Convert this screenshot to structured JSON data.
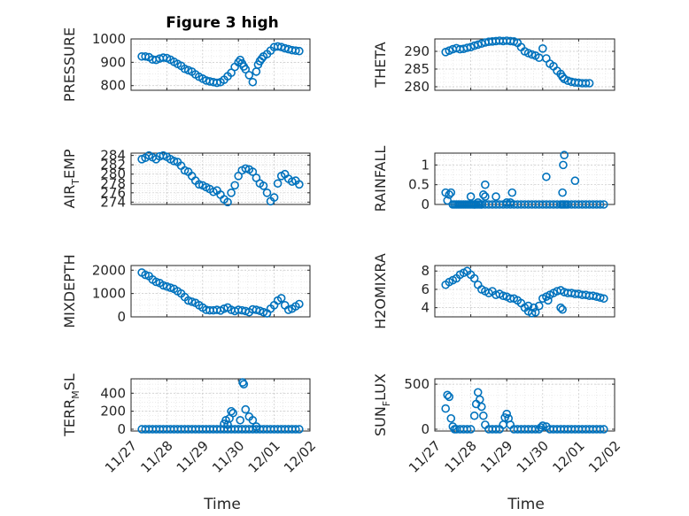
{
  "figure_title": "Figure 3 high",
  "x_axis_label": "Time",
  "x_tick_labels": [
    "11/27",
    "11/28",
    "11/29",
    "11/30",
    "12/01",
    "12/02"
  ],
  "marker_color": "#0072BD",
  "chart_data": [
    {
      "type": "scatter",
      "ylabel": "PRESSURE",
      "ylim": [
        780,
        1000
      ],
      "yticks": [
        800,
        900,
        1000
      ],
      "x": [
        0.3,
        0.4,
        0.5,
        0.6,
        0.7,
        0.8,
        0.9,
        1.0,
        1.1,
        1.2,
        1.3,
        1.4,
        1.5,
        1.6,
        1.7,
        1.8,
        1.9,
        2.0,
        2.1,
        2.2,
        2.3,
        2.4,
        2.5,
        2.6,
        2.7,
        2.8,
        2.9,
        3.0,
        3.05,
        3.1,
        3.15,
        3.2,
        3.3,
        3.4,
        3.5,
        3.55,
        3.6,
        3.65,
        3.7,
        3.8,
        3.9,
        4.0,
        4.1,
        4.2,
        4.3,
        4.4,
        4.5,
        4.6,
        4.7
      ],
      "y": [
        925,
        925,
        922,
        912,
        910,
        916,
        920,
        918,
        911,
        902,
        893,
        885,
        872,
        866,
        860,
        848,
        838,
        830,
        822,
        818,
        815,
        812,
        815,
        825,
        840,
        855,
        880,
        900,
        910,
        895,
        882,
        870,
        845,
        815,
        860,
        890,
        905,
        915,
        925,
        935,
        950,
        965,
        968,
        965,
        960,
        956,
        952,
        950,
        948
      ],
      "grid": true
    },
    {
      "type": "scatter",
      "ylabel": "THETA",
      "ylim": [
        279,
        293.5
      ],
      "yticks": [
        280,
        285,
        290
      ],
      "x": [
        0.3,
        0.4,
        0.5,
        0.6,
        0.7,
        0.8,
        0.9,
        1.0,
        1.1,
        1.2,
        1.3,
        1.4,
        1.5,
        1.6,
        1.7,
        1.8,
        1.9,
        2.0,
        2.1,
        2.2,
        2.3,
        2.4,
        2.5,
        2.6,
        2.7,
        2.8,
        2.9,
        3.0,
        3.1,
        3.2,
        3.3,
        3.4,
        3.5,
        3.55,
        3.6,
        3.7,
        3.8,
        3.9,
        4.0,
        4.1,
        4.2,
        4.3
      ],
      "y": [
        289.8,
        290.2,
        290.6,
        290.9,
        290.6,
        290.7,
        291.0,
        291.2,
        291.6,
        291.9,
        292.2,
        292.5,
        292.7,
        292.8,
        292.9,
        293.0,
        292.9,
        293.0,
        292.9,
        292.8,
        292.4,
        291.2,
        290.0,
        289.5,
        289.1,
        288.8,
        288.2,
        290.8,
        288.0,
        286.5,
        285.8,
        284.5,
        283.6,
        282.8,
        282.2,
        281.7,
        281.4,
        281.2,
        281.1,
        281.0,
        281.0,
        281.0
      ],
      "grid": true
    },
    {
      "type": "scatter",
      "ylabel": "AIR_TEMP",
      "ylabel_sub": "T",
      "ylim": [
        273.5,
        284.5
      ],
      "yticks": [
        274,
        276,
        278,
        280,
        282,
        284
      ],
      "x": [
        0.3,
        0.4,
        0.5,
        0.6,
        0.7,
        0.8,
        0.9,
        1.0,
        1.1,
        1.2,
        1.3,
        1.4,
        1.5,
        1.6,
        1.7,
        1.8,
        1.9,
        2.0,
        2.1,
        2.2,
        2.3,
        2.4,
        2.5,
        2.6,
        2.7,
        2.8,
        2.9,
        3.0,
        3.1,
        3.2,
        3.3,
        3.4,
        3.5,
        3.6,
        3.7,
        3.8,
        3.9,
        4.0,
        4.1,
        4.2,
        4.3,
        4.4,
        4.5,
        4.6,
        4.7
      ],
      "y": [
        283.2,
        283.5,
        284.0,
        283.6,
        283.2,
        283.8,
        284.0,
        283.7,
        283.2,
        282.8,
        282.6,
        281.8,
        280.8,
        280.5,
        279.6,
        278.6,
        277.8,
        277.6,
        277.2,
        276.8,
        276.2,
        276.5,
        275.6,
        274.6,
        274.0,
        276.0,
        277.6,
        279.6,
        280.8,
        281.2,
        281.0,
        280.5,
        279.2,
        278.0,
        277.5,
        276.0,
        274.2,
        275.0,
        278.0,
        279.6,
        280.0,
        279.0,
        278.4,
        278.6,
        277.8
      ],
      "grid": true
    },
    {
      "type": "scatter",
      "ylabel": "RAINFALL",
      "ylim": [
        0,
        1.3
      ],
      "yticks": [
        0,
        0.5,
        1
      ],
      "x": [
        0.3,
        0.35,
        0.4,
        0.45,
        0.5,
        0.55,
        0.6,
        0.65,
        0.7,
        0.75,
        0.8,
        0.85,
        0.9,
        0.95,
        1.0,
        1.05,
        1.1,
        1.15,
        1.2,
        1.3,
        1.4,
        1.5,
        1.6,
        1.7,
        1.8,
        1.9,
        2.0,
        2.1,
        2.2,
        2.3,
        2.4,
        2.5,
        2.6,
        2.7,
        2.8,
        2.9,
        3.0,
        3.1,
        3.2,
        3.3,
        3.4,
        3.5,
        3.55,
        3.6,
        3.65,
        3.7,
        3.8,
        3.9,
        4.0,
        4.1,
        4.2,
        4.3,
        4.4,
        4.5,
        4.6,
        4.7,
        1.0,
        1.1,
        1.2,
        1.25,
        1.3,
        1.35,
        1.4,
        1.7,
        2.0,
        2.1,
        2.15,
        3.1,
        3.55,
        3.57,
        3.6,
        1.4,
        3.9
      ],
      "y": [
        0.3,
        0.1,
        0.25,
        0.3,
        0.0,
        0.0,
        0.0,
        0.0,
        0.0,
        0.0,
        0.0,
        0.0,
        0.0,
        0.0,
        0.0,
        0.0,
        0.0,
        0.0,
        0.0,
        0.0,
        0.0,
        0.0,
        0.0,
        0.0,
        0.0,
        0.0,
        0.0,
        0.0,
        0.0,
        0.0,
        0.0,
        0.0,
        0.0,
        0.0,
        0.0,
        0.0,
        0.0,
        0.0,
        0.0,
        0.0,
        0.0,
        0.0,
        0.0,
        0.0,
        0.0,
        0.0,
        0.0,
        0.0,
        0.0,
        0.0,
        0.0,
        0.0,
        0.0,
        0.0,
        0.0,
        0.0,
        0.2,
        0.0,
        0.05,
        0.0,
        0.0,
        0.25,
        0.2,
        0.2,
        0.05,
        0.05,
        0.3,
        0.7,
        0.3,
        1.0,
        1.25,
        0.5,
        0.6
      ],
      "grid": true
    },
    {
      "type": "scatter",
      "ylabel": "MIXDEPTH",
      "ylim": [
        0,
        2200
      ],
      "yticks": [
        0,
        1000,
        2000
      ],
      "x": [
        0.3,
        0.4,
        0.5,
        0.6,
        0.7,
        0.8,
        0.9,
        1.0,
        1.1,
        1.2,
        1.3,
        1.4,
        1.5,
        1.6,
        1.7,
        1.8,
        1.9,
        2.0,
        2.1,
        2.2,
        2.3,
        2.4,
        2.5,
        2.6,
        2.7,
        2.8,
        2.9,
        3.0,
        3.1,
        3.2,
        3.3,
        3.4,
        3.5,
        3.6,
        3.7,
        3.8,
        3.9,
        4.0,
        4.1,
        4.2,
        4.3,
        4.4,
        4.5,
        4.6,
        4.7
      ],
      "y": [
        1900,
        1800,
        1750,
        1600,
        1500,
        1450,
        1350,
        1300,
        1250,
        1200,
        1100,
        1000,
        850,
        700,
        650,
        600,
        500,
        400,
        300,
        280,
        280,
        300,
        270,
        350,
        400,
        300,
        250,
        300,
        280,
        250,
        200,
        320,
        300,
        260,
        200,
        150,
        350,
        500,
        700,
        800,
        500,
        300,
        350,
        450,
        550
      ],
      "grid": true
    },
    {
      "type": "scatter",
      "ylabel": "H2OMIXRA",
      "ylim": [
        3,
        8.6
      ],
      "yticks": [
        4,
        6,
        8
      ],
      "x": [
        0.3,
        0.4,
        0.5,
        0.6,
        0.7,
        0.8,
        0.9,
        1.0,
        1.1,
        1.2,
        1.3,
        1.4,
        1.5,
        1.6,
        1.7,
        1.8,
        1.9,
        2.0,
        2.1,
        2.2,
        2.3,
        2.4,
        2.5,
        2.6,
        2.7,
        2.8,
        2.9,
        3.0,
        3.1,
        3.2,
        3.3,
        3.4,
        3.5,
        3.6,
        3.7,
        3.8,
        3.9,
        4.0,
        4.1,
        4.2,
        4.3,
        4.4,
        4.5,
        4.6,
        4.7,
        2.6,
        2.75,
        3.15,
        3.5,
        3.55
      ],
      "y": [
        6.5,
        6.8,
        7.0,
        7.2,
        7.6,
        7.8,
        8.0,
        7.6,
        7.2,
        6.5,
        6.0,
        5.8,
        5.6,
        5.8,
        5.4,
        5.5,
        5.3,
        5.2,
        5.0,
        5.0,
        4.8,
        4.5,
        4.0,
        3.6,
        3.4,
        3.5,
        4.2,
        5.0,
        5.2,
        5.4,
        5.6,
        5.8,
        5.9,
        5.7,
        5.6,
        5.6,
        5.5,
        5.5,
        5.4,
        5.4,
        5.3,
        5.3,
        5.2,
        5.1,
        5.0,
        4.2,
        4.0,
        4.8,
        4.0,
        3.8
      ],
      "grid": true
    },
    {
      "type": "scatter",
      "ylabel": "TERR_MSL",
      "ylabel_sub": "M",
      "ylim": [
        -20,
        560
      ],
      "yticks": [
        0,
        200,
        400
      ],
      "x": [
        0.3,
        0.4,
        0.5,
        0.6,
        0.7,
        0.8,
        0.9,
        1.0,
        1.1,
        1.2,
        1.3,
        1.4,
        1.5,
        1.6,
        1.7,
        1.8,
        1.9,
        2.0,
        2.1,
        2.2,
        2.3,
        2.4,
        2.5,
        2.6,
        2.7,
        2.8,
        2.9,
        3.0,
        3.1,
        3.2,
        3.3,
        3.4,
        3.5,
        3.6,
        3.7,
        3.8,
        3.9,
        4.0,
        4.1,
        4.2,
        4.3,
        4.4,
        4.5,
        4.6,
        4.7,
        2.6,
        2.65,
        2.7,
        2.75,
        2.8,
        2.85,
        3.05,
        3.12,
        3.15,
        3.2,
        3.3,
        3.4,
        3.5
      ],
      "y": [
        0,
        0,
        0,
        0,
        0,
        0,
        0,
        0,
        0,
        0,
        0,
        0,
        0,
        0,
        0,
        0,
        0,
        0,
        0,
        0,
        0,
        0,
        0,
        0,
        0,
        0,
        0,
        0,
        0,
        0,
        0,
        0,
        0,
        0,
        0,
        0,
        0,
        0,
        0,
        0,
        0,
        0,
        0,
        0,
        0,
        60,
        100,
        50,
        120,
        200,
        180,
        100,
        520,
        500,
        220,
        140,
        100,
        30
      ],
      "grid": true
    },
    {
      "type": "scatter",
      "ylabel": "SUN_FLUX",
      "ylabel_sub": "F",
      "ylim": [
        -20,
        560
      ],
      "yticks": [
        0,
        500
      ],
      "x": [
        0.3,
        0.35,
        0.4,
        0.45,
        0.5,
        0.55,
        0.6,
        0.7,
        0.8,
        0.9,
        1.0,
        1.1,
        1.15,
        1.2,
        1.25,
        1.3,
        1.35,
        1.4,
        1.5,
        1.6,
        1.7,
        1.8,
        1.9,
        1.95,
        2.0,
        2.05,
        2.1,
        2.2,
        2.3,
        2.4,
        2.5,
        2.6,
        2.7,
        2.8,
        2.9,
        2.95,
        3.0,
        3.1,
        3.2,
        3.3,
        3.4,
        3.5,
        3.6,
        3.7,
        3.8,
        3.9,
        4.0,
        4.1,
        4.2,
        4.3,
        4.4,
        4.5,
        4.6,
        4.7
      ],
      "y": [
        230,
        380,
        360,
        120,
        30,
        0,
        0,
        0,
        0,
        0,
        0,
        150,
        280,
        410,
        330,
        250,
        150,
        50,
        0,
        0,
        0,
        0,
        50,
        130,
        170,
        120,
        50,
        0,
        0,
        0,
        0,
        0,
        0,
        0,
        0,
        20,
        40,
        30,
        0,
        0,
        0,
        0,
        0,
        0,
        0,
        0,
        0,
        0,
        0,
        0,
        0,
        0,
        0,
        0
      ],
      "grid": true
    }
  ]
}
